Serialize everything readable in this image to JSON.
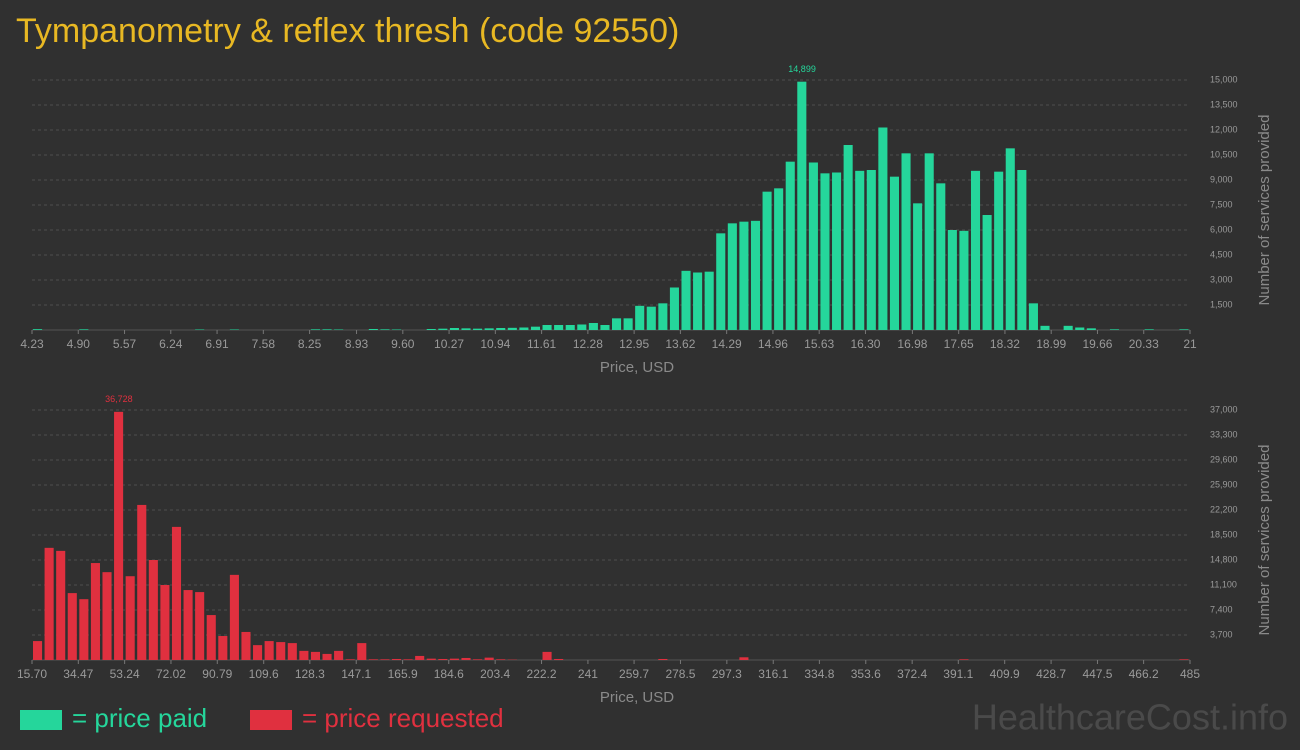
{
  "title": "Tympanometry & reflex thresh (code 92550)",
  "watermark": "HealthcareCost.info",
  "chart_data": [
    {
      "type": "histogram",
      "xlabel": "Price, USD",
      "ylabel": "Number of services provided",
      "grid": true,
      "xlim": [
        4.23,
        21
      ],
      "ylim": [
        0,
        15000
      ],
      "xticks": [
        4.23,
        {
          "value": 4.9,
          "label": "4.90"
        },
        5.57,
        6.24,
        6.91,
        7.58,
        8.25,
        8.93,
        {
          "value": 9.6,
          "label": "9.60"
        },
        10.27,
        10.94,
        11.61,
        12.28,
        12.95,
        13.62,
        14.29,
        14.96,
        15.63,
        {
          "value": 16.3,
          "label": "16.30"
        },
        16.98,
        17.65,
        18.32,
        18.99,
        19.66,
        20.33,
        21
      ],
      "yticks": [
        {
          "value": 1500,
          "label": "1,500"
        },
        {
          "value": 3000,
          "label": "3,000"
        },
        {
          "value": 4500,
          "label": "4,500"
        },
        {
          "value": 6000,
          "label": "6,000"
        },
        {
          "value": 7500,
          "label": "7,500"
        },
        {
          "value": 9000,
          "label": "9,000"
        },
        {
          "value": 10500,
          "label": "10,500"
        },
        {
          "value": 12000,
          "label": "12,000"
        },
        {
          "value": 13500,
          "label": "13,500"
        },
        {
          "value": 15000,
          "label": "15,000"
        }
      ],
      "bins": [
        4.23,
        4.3977,
        4.5654,
        4.7331,
        4.9008,
        5.0685,
        5.2362,
        5.4039,
        5.5716,
        5.7393,
        5.907,
        6.0747,
        6.2424,
        6.4101,
        6.5778,
        6.7455,
        6.9132,
        7.0809,
        7.2486,
        7.4163,
        7.584,
        7.7517,
        7.9194,
        8.0871,
        8.2548,
        8.4225,
        8.5902,
        8.7579,
        8.9256,
        9.0933,
        9.261,
        9.4287,
        9.5964,
        9.7641,
        9.9318,
        10.0995,
        10.2672,
        10.4349,
        10.6026,
        10.7703,
        10.938,
        11.1057,
        11.2734,
        11.4411,
        11.6088,
        11.7765,
        11.9442,
        12.1119,
        12.2796,
        12.4473,
        12.615,
        12.7827,
        12.9504,
        13.1181,
        13.2858,
        13.4535,
        13.6212,
        13.7889,
        13.9566,
        14.1243,
        14.292,
        14.4597,
        14.6274,
        14.7951,
        14.9628,
        15.1305,
        15.2982,
        15.4659,
        15.6336,
        15.8013,
        15.969,
        16.1367,
        16.3044,
        16.4721,
        16.6398,
        16.8075,
        16.9752,
        17.1429,
        17.3106,
        17.4783,
        17.646,
        17.8137,
        17.9814,
        18.1491,
        18.3168,
        18.4845,
        18.6522,
        18.8199,
        18.9876,
        19.1553,
        19.323,
        19.4907,
        19.6584,
        19.8261,
        19.9938,
        20.1615,
        20.3292,
        20.4969,
        20.6646,
        20.8323,
        21
      ],
      "series": [
        {
          "name": "= price paid",
          "color": "#25d69b",
          "values": [
            50,
            0,
            0,
            0,
            40,
            0,
            0,
            0,
            0,
            0,
            0,
            0,
            0,
            0,
            30,
            0,
            0,
            30,
            0,
            0,
            0,
            0,
            0,
            0,
            40,
            40,
            30,
            0,
            0,
            60,
            40,
            30,
            0,
            0,
            60,
            80,
            120,
            100,
            80,
            100,
            120,
            130,
            150,
            200,
            300,
            300,
            300,
            330,
            420,
            300,
            700,
            700,
            1450,
            1400,
            1600,
            2550,
            3550,
            3450,
            3500,
            5800,
            6400,
            6500,
            6550,
            8300,
            8500,
            10100,
            14899,
            10050,
            9400,
            9450,
            11100,
            9550,
            9600,
            12150,
            9200,
            10600,
            7600,
            10600,
            8800,
            6000,
            5950,
            9550,
            6900,
            9500,
            10900,
            9600,
            1600,
            250,
            0,
            250,
            150,
            100,
            0,
            40,
            0,
            0,
            40,
            0,
            0,
            40
          ],
          "value_labels": [
            null,
            null,
            null,
            null,
            null,
            null,
            null,
            null,
            null,
            null,
            null,
            null,
            null,
            null,
            null,
            null,
            null,
            null,
            null,
            null,
            null,
            null,
            null,
            null,
            null,
            null,
            null,
            null,
            null,
            null,
            null,
            null,
            null,
            null,
            null,
            null,
            null,
            null,
            null,
            null,
            null,
            null,
            null,
            null,
            null,
            null,
            null,
            null,
            null,
            null,
            null,
            null,
            null,
            null,
            null,
            null,
            null,
            null,
            null,
            null,
            null,
            null,
            null,
            null,
            null,
            null,
            "14,899",
            null,
            null,
            null,
            null,
            null,
            null,
            null,
            null,
            null,
            null,
            null,
            null,
            null,
            null,
            null,
            null,
            null,
            null,
            null,
            null,
            null,
            null,
            null,
            null,
            null,
            null,
            null,
            null,
            null,
            null,
            null,
            null,
            null
          ]
        }
      ]
    },
    {
      "type": "histogram",
      "xlabel": "Price, USD",
      "ylabel": "Number of services provided",
      "grid": true,
      "xlim": [
        15.7,
        485
      ],
      "ylim": [
        0,
        37000
      ],
      "xticks": [
        {
          "value": 15.7,
          "label": "15.70"
        },
        34.47,
        53.24,
        72.02,
        90.79,
        109.6,
        128.3,
        147.1,
        165.9,
        184.6,
        203.4,
        222.2,
        241,
        259.7,
        278.5,
        297.3,
        316.1,
        334.8,
        353.6,
        372.4,
        391.1,
        409.9,
        428.7,
        447.5,
        466.2,
        485
      ],
      "yticks": [
        {
          "value": 3700,
          "label": "3,700"
        },
        {
          "value": 7400,
          "label": "7,400"
        },
        {
          "value": 11100,
          "label": "11,100"
        },
        {
          "value": 14800,
          "label": "14,800"
        },
        {
          "value": 18500,
          "label": "18,500"
        },
        {
          "value": 22200,
          "label": "22,200"
        },
        {
          "value": 25900,
          "label": "25,900"
        },
        {
          "value": 29600,
          "label": "29,600"
        },
        {
          "value": 33300,
          "label": "33,300"
        },
        {
          "value": 37000,
          "label": "37,000"
        }
      ],
      "bins": [
        15.7,
        20.393,
        25.086,
        29.779,
        34.472,
        39.165,
        43.858,
        48.551,
        53.244,
        57.937,
        62.63,
        67.323,
        72.016,
        76.709,
        81.402,
        86.095,
        90.788,
        95.481,
        100.174,
        104.867,
        109.56,
        114.253,
        118.946,
        123.639,
        128.332,
        133.025,
        137.718,
        142.411,
        147.104,
        151.797,
        156.49,
        161.183,
        165.876,
        170.569,
        175.262,
        179.955,
        184.648,
        189.341,
        194.034,
        198.727,
        203.42,
        208.113,
        212.806,
        217.499,
        222.192,
        226.885,
        231.578,
        236.271,
        240.964,
        245.657,
        250.35,
        255.043,
        259.736,
        264.429,
        269.122,
        273.815,
        278.508,
        283.201,
        287.894,
        292.587,
        297.28,
        301.973,
        306.666,
        311.359,
        316.052,
        320.745,
        325.438,
        330.131,
        334.824,
        339.517,
        344.21,
        348.903,
        353.596,
        358.289,
        362.982,
        367.675,
        372.368,
        377.061,
        381.754,
        386.447,
        391.14,
        395.833,
        400.526,
        405.219,
        409.912,
        414.605,
        419.298,
        423.991,
        428.684,
        433.377,
        438.07,
        442.763,
        447.456,
        452.149,
        456.842,
        461.535,
        466.228,
        470.921,
        475.614,
        480.307,
        485
      ],
      "series": [
        {
          "name": "= price requested",
          "color": "#e0303f",
          "values": [
            2800,
            16600,
            16150,
            9900,
            9000,
            14350,
            13000,
            36728,
            12400,
            22950,
            14800,
            11100,
            19700,
            10350,
            10050,
            6650,
            3550,
            12600,
            4150,
            2200,
            2800,
            2650,
            2500,
            1350,
            1200,
            900,
            1350,
            100,
            2500,
            100,
            100,
            150,
            100,
            600,
            200,
            150,
            200,
            300,
            100,
            350,
            100,
            50,
            0,
            0,
            1200,
            150,
            0,
            0,
            0,
            0,
            0,
            0,
            0,
            0,
            150,
            0,
            0,
            0,
            0,
            0,
            0,
            400,
            0,
            0,
            0,
            0,
            0,
            0,
            0,
            0,
            0,
            0,
            0,
            0,
            0,
            0,
            0,
            0,
            0,
            0,
            100,
            0,
            0,
            0,
            0,
            0,
            0,
            0,
            0,
            0,
            0,
            0,
            0,
            0,
            0,
            0,
            0,
            0,
            0,
            100
          ],
          "value_labels": [
            null,
            null,
            null,
            null,
            null,
            null,
            null,
            "36,728",
            null,
            null,
            null,
            null,
            null,
            null,
            null,
            null,
            null,
            null,
            null,
            null,
            null,
            null,
            null,
            null,
            null,
            null,
            null,
            null,
            null,
            null,
            null,
            null,
            null,
            null,
            null,
            null,
            null,
            null,
            null,
            null,
            null,
            null,
            null,
            null,
            null,
            null,
            null,
            null,
            null,
            null,
            null,
            null,
            null,
            null,
            null,
            null,
            null,
            null,
            null,
            null,
            null,
            null,
            null,
            null,
            null,
            null,
            null,
            null,
            null,
            null,
            null,
            null,
            null,
            null,
            null,
            null,
            null,
            null,
            null,
            null,
            null,
            null,
            null,
            null,
            null,
            null,
            null,
            null,
            null,
            null,
            null,
            null,
            null,
            null,
            null,
            null,
            null,
            null,
            null,
            null
          ]
        }
      ]
    }
  ]
}
